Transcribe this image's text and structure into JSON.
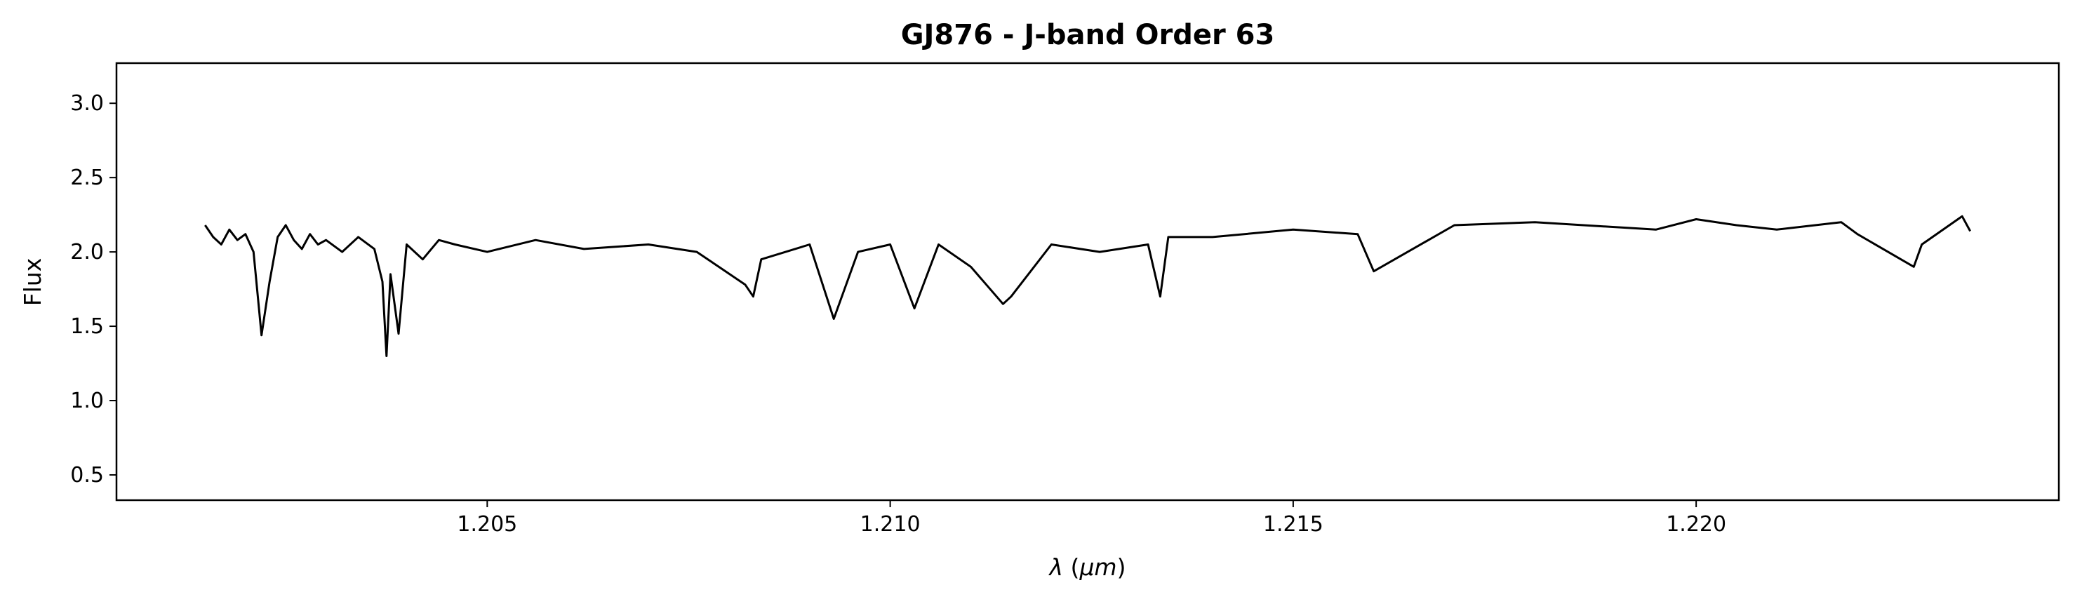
{
  "chart_data": {
    "type": "line",
    "title": "GJ876 - J-band Order 63",
    "xlabel": "λ (μm)",
    "ylabel": "Flux",
    "xlim": [
      1.2004,
      1.2245
    ],
    "ylim": [
      0.33,
      3.27
    ],
    "xticks": [
      1.205,
      1.21,
      1.215,
      1.22
    ],
    "xtick_labels": [
      "1.205",
      "1.210",
      "1.215",
      "1.220"
    ],
    "yticks": [
      0.5,
      1.0,
      1.5,
      2.0,
      2.5,
      3.0
    ],
    "ytick_labels": [
      "0.5",
      "1.0",
      "1.5",
      "2.0",
      "2.5",
      "3.0"
    ],
    "grid": false,
    "line_color": "#000000",
    "series": [
      {
        "x": [
          1.2015,
          1.2016,
          1.2017,
          1.2018,
          1.2019,
          1.202,
          1.2021,
          1.2022,
          1.2023,
          1.2024,
          1.2025,
          1.2026,
          1.2027,
          1.2028,
          1.2029,
          1.203,
          1.2032,
          1.2034,
          1.2036,
          1.2037,
          1.20375,
          1.2038,
          1.2039,
          1.204,
          1.2042,
          1.2044,
          1.2046,
          1.205,
          1.2056,
          1.2062,
          1.207,
          1.2076,
          1.2082,
          1.2083,
          1.2084,
          1.209,
          1.2093,
          1.2096,
          1.21,
          1.2103,
          1.2106,
          1.211,
          1.2114,
          1.2115,
          1.212,
          1.2126,
          1.2132,
          1.21335,
          1.21345,
          1.214,
          1.215,
          1.2158,
          1.216,
          1.217,
          1.218,
          1.2195,
          1.22,
          1.2205,
          1.221,
          1.2218,
          1.222,
          1.2227,
          1.2228,
          1.2233,
          1.2234
        ],
        "y": [
          2.18,
          2.1,
          2.05,
          2.15,
          2.08,
          2.12,
          2.0,
          1.44,
          1.8,
          2.1,
          2.18,
          2.08,
          2.02,
          2.12,
          2.05,
          2.08,
          2.0,
          2.1,
          2.02,
          1.8,
          1.3,
          1.85,
          1.45,
          2.05,
          1.95,
          2.08,
          2.05,
          2.0,
          2.08,
          2.02,
          2.05,
          2.0,
          1.78,
          1.7,
          1.95,
          2.05,
          1.55,
          2.0,
          2.05,
          1.62,
          2.05,
          1.9,
          1.65,
          1.7,
          2.05,
          2.0,
          2.05,
          1.7,
          2.1,
          2.1,
          2.15,
          2.12,
          1.87,
          2.18,
          2.2,
          2.15,
          2.22,
          2.18,
          2.15,
          2.2,
          2.12,
          1.9,
          2.05,
          2.24,
          2.14
        ]
      }
    ]
  }
}
